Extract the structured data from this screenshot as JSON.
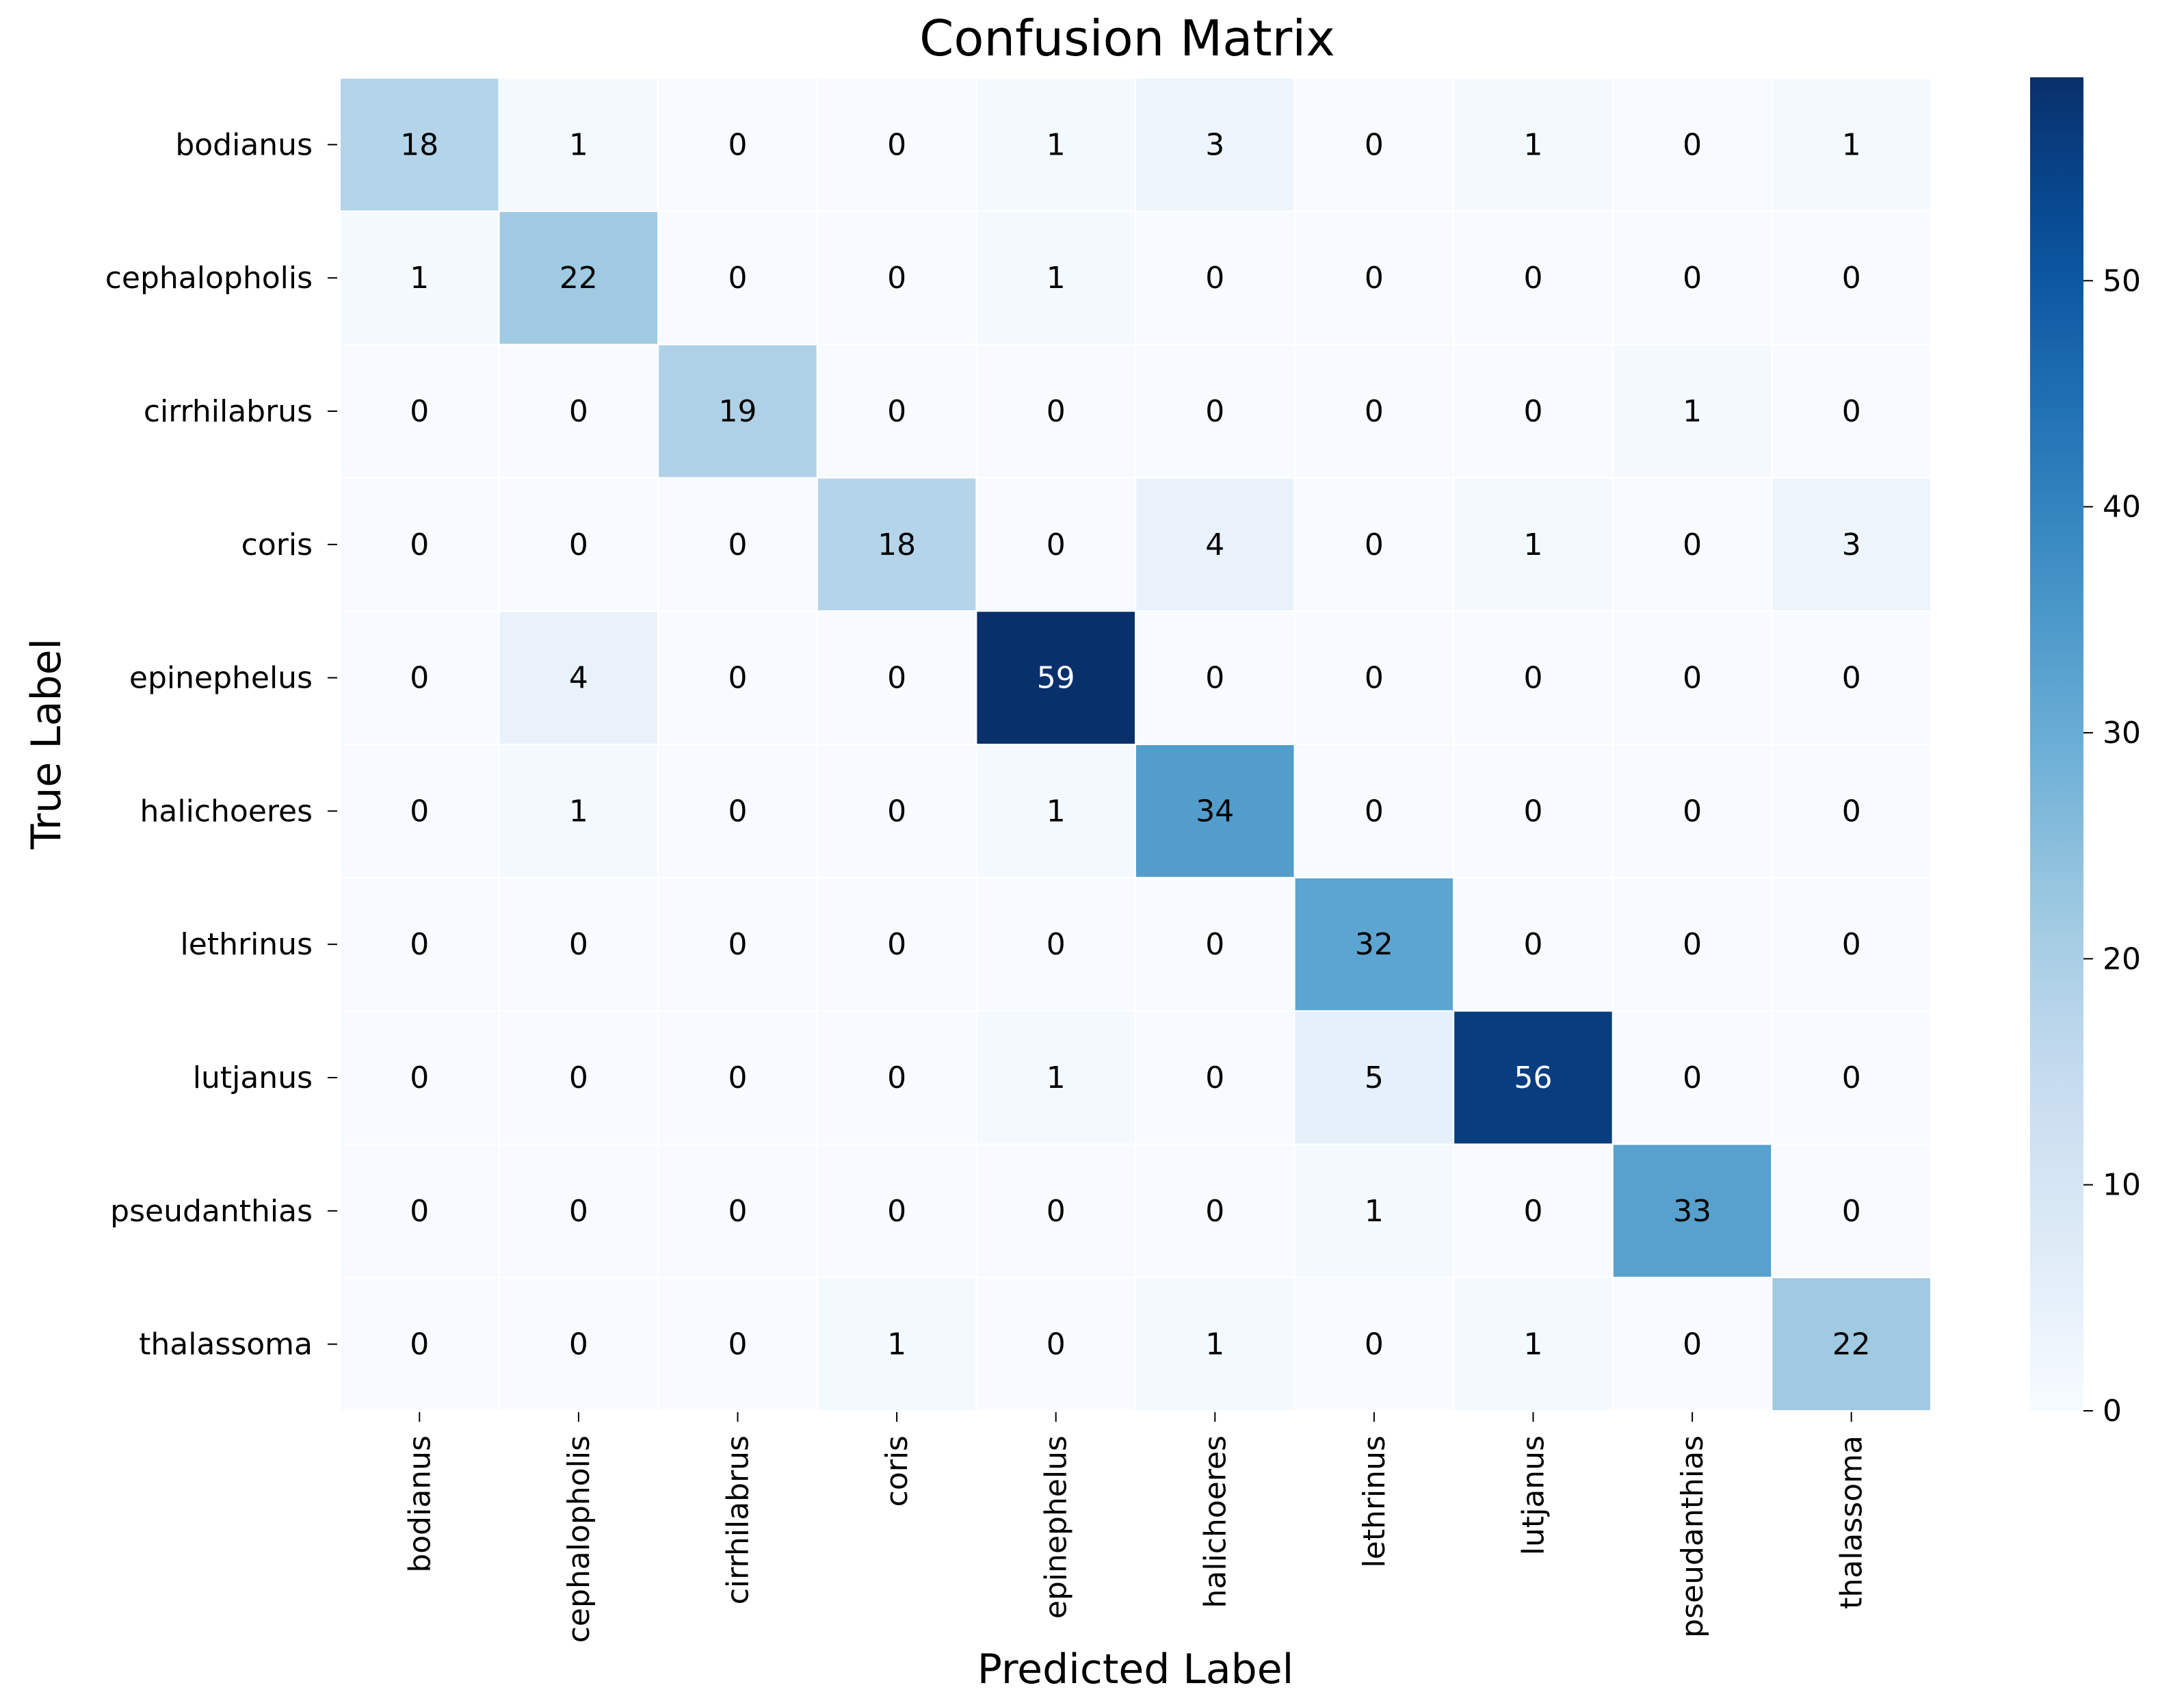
{
  "chart_data": {
    "type": "heatmap",
    "title": "Confusion Matrix",
    "xlabel": "Predicted Label",
    "ylabel": "True Label",
    "x_categories": [
      "bodianus",
      "cephalopholis",
      "cirrhilabrus",
      "coris",
      "epinephelus",
      "halichoeres",
      "lethrinus",
      "lutjanus",
      "pseudanthias",
      "thalassoma"
    ],
    "y_categories": [
      "bodianus",
      "cephalopholis",
      "cirrhilabrus",
      "coris",
      "epinephelus",
      "halichoeres",
      "lethrinus",
      "lutjanus",
      "pseudanthias",
      "thalassoma"
    ],
    "values": [
      [
        18,
        1,
        0,
        0,
        1,
        3,
        0,
        1,
        0,
        1
      ],
      [
        1,
        22,
        0,
        0,
        1,
        0,
        0,
        0,
        0,
        0
      ],
      [
        0,
        0,
        19,
        0,
        0,
        0,
        0,
        0,
        1,
        0
      ],
      [
        0,
        0,
        0,
        18,
        0,
        4,
        0,
        1,
        0,
        3
      ],
      [
        0,
        4,
        0,
        0,
        59,
        0,
        0,
        0,
        0,
        0
      ],
      [
        0,
        1,
        0,
        0,
        1,
        34,
        0,
        0,
        0,
        0
      ],
      [
        0,
        0,
        0,
        0,
        0,
        0,
        32,
        0,
        0,
        0
      ],
      [
        0,
        0,
        0,
        0,
        1,
        0,
        5,
        56,
        0,
        0
      ],
      [
        0,
        0,
        0,
        0,
        0,
        0,
        1,
        0,
        33,
        0
      ],
      [
        0,
        0,
        0,
        1,
        0,
        1,
        0,
        1,
        0,
        22
      ]
    ],
    "colormap": "Blues",
    "color_range": [
      0,
      59
    ],
    "colorbar_ticks": [
      0,
      10,
      20,
      30,
      40,
      50
    ]
  }
}
